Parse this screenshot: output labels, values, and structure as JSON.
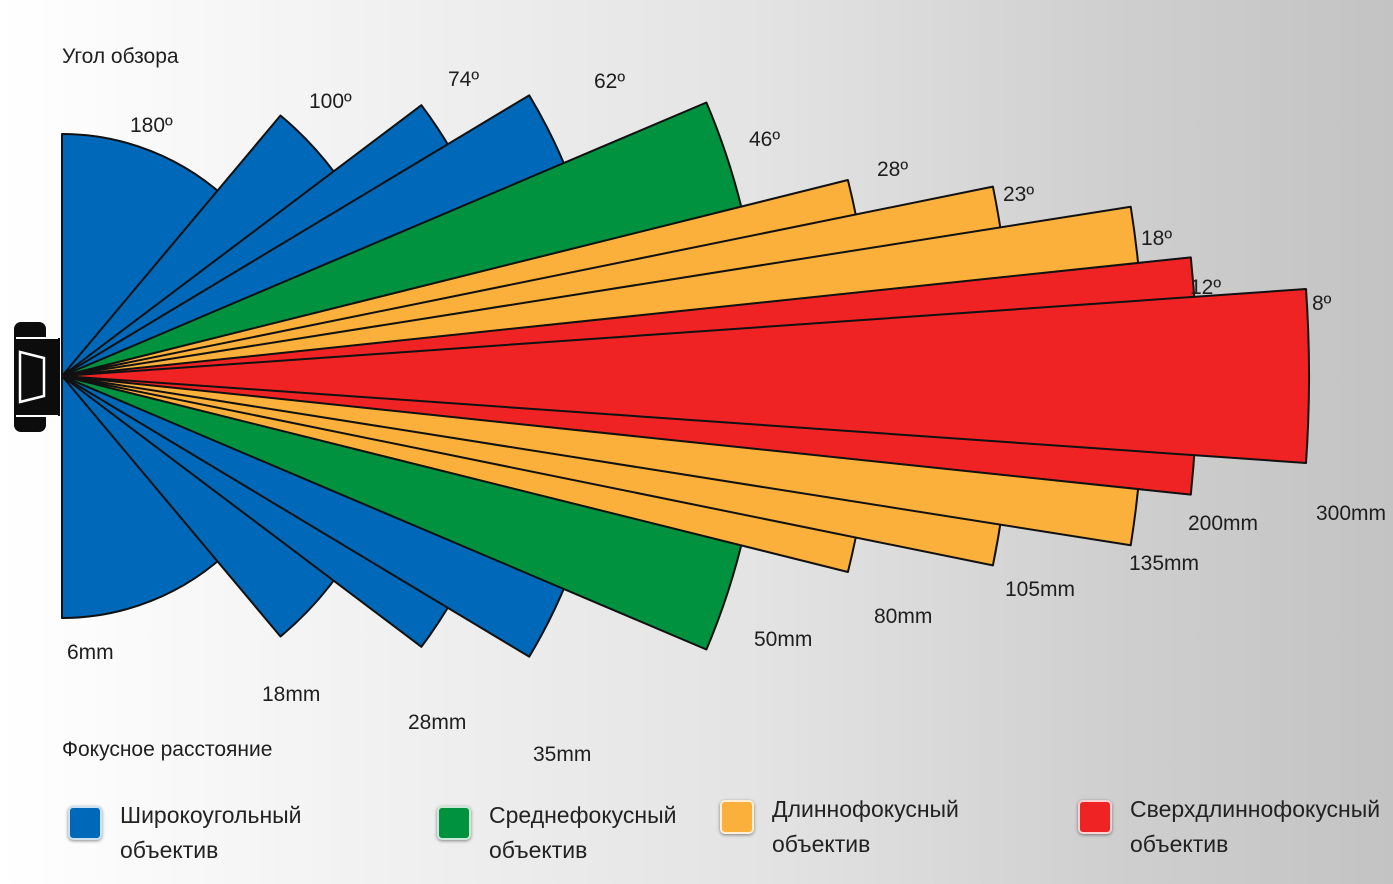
{
  "header": {
    "angle_title": "Угол обзора",
    "focal_title": "Фокусное расстояние"
  },
  "colors": {
    "wide": "#0068b8",
    "normal": "#00923f",
    "tele": "#fbb03b",
    "super": "#ef2323"
  },
  "lenses": [
    {
      "focal": "6mm",
      "angle": "180º",
      "angle_deg": 180,
      "category": "wide"
    },
    {
      "focal": "18mm",
      "angle": "100º",
      "angle_deg": 100,
      "category": "wide"
    },
    {
      "focal": "28mm",
      "angle": "74º",
      "angle_deg": 74,
      "category": "wide"
    },
    {
      "focal": "35mm",
      "angle": "62º",
      "angle_deg": 62,
      "category": "wide"
    },
    {
      "focal": "50mm",
      "angle": "46º",
      "angle_deg": 46,
      "category": "normal"
    },
    {
      "focal": "80mm",
      "angle": "28º",
      "angle_deg": 28,
      "category": "tele"
    },
    {
      "focal": "105mm",
      "angle": "23º",
      "angle_deg": 23,
      "category": "tele"
    },
    {
      "focal": "135mm",
      "angle": "18º",
      "angle_deg": 18,
      "category": "tele"
    },
    {
      "focal": "200mm",
      "angle": "12º",
      "angle_deg": 12,
      "category": "super"
    },
    {
      "focal": "300mm",
      "angle": "8º",
      "angle_deg": 8,
      "category": "super"
    }
  ],
  "legend": [
    {
      "key": "wide",
      "line1": "Широкоугольный",
      "line2": "объектив"
    },
    {
      "key": "normal",
      "line1": "Среднефокусный",
      "line2": "объектив"
    },
    {
      "key": "tele",
      "line1": "Длиннофокусный",
      "line2": "объектив"
    },
    {
      "key": "super",
      "line1": "Сверхдлиннофокусный",
      "line2": "объектив"
    }
  ]
}
